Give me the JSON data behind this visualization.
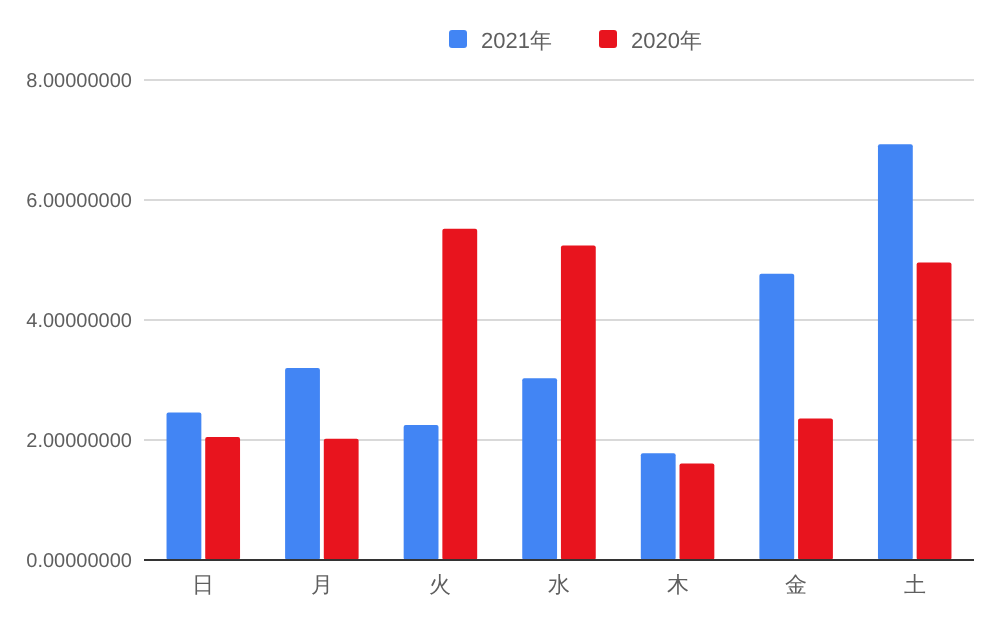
{
  "chart_data": {
    "type": "bar",
    "categories": [
      "日",
      "月",
      "火",
      "水",
      "木",
      "金",
      "土"
    ],
    "series": [
      {
        "name": "2021年",
        "color": "#4285f4",
        "values": [
          2.46,
          3.2,
          2.25,
          3.03,
          1.78,
          4.77,
          6.93
        ]
      },
      {
        "name": "2020年",
        "color": "#e8141e",
        "values": [
          2.05,
          2.02,
          5.52,
          5.24,
          1.61,
          2.36,
          4.96
        ]
      }
    ],
    "ylim": [
      0,
      8
    ],
    "yticks": [
      {
        "value": 0,
        "label": "0.00000000"
      },
      {
        "value": 2,
        "label": "2.00000000"
      },
      {
        "value": 4,
        "label": "4.00000000"
      },
      {
        "value": 6,
        "label": "6.00000000"
      },
      {
        "value": 8,
        "label": "8.00000000"
      }
    ],
    "grid": "y",
    "legend": "top"
  }
}
